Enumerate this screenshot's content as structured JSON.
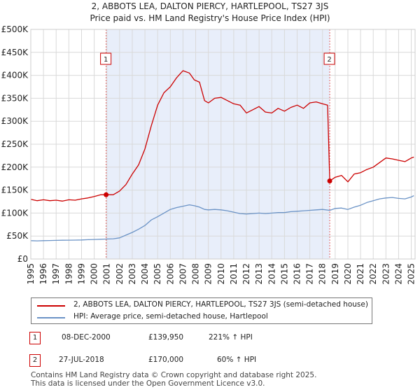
{
  "title_line1": "2, ABBOTS LEA, DALTON PIERCY, HARTLEPOOL, TS27 3JS",
  "title_line2": "Price paid vs. HM Land Registry's House Price Index (HPI)",
  "colors": {
    "property": "#cc0000",
    "hpi": "#6b93c6",
    "shade": "#e8eefa",
    "grid": "#d9d9d9",
    "marker_line": "#e06060"
  },
  "legend": {
    "property_label": "2, ABBOTS LEA, DALTON PIERCY, HARTLEPOOL, TS27 3JS (semi-detached house)",
    "hpi_label": "HPI: Average price, semi-detached house, Hartlepool"
  },
  "annotations": [
    {
      "num": "1",
      "date": "08-DEC-2000",
      "price": "£139,950",
      "hpi_change": "221% ↑ HPI"
    },
    {
      "num": "2",
      "date": "27-JUL-2018",
      "price": "£170,000",
      "hpi_change": "60% ↑ HPI"
    }
  ],
  "footer_line1": "Contains HM Land Registry data © Crown copyright and database right 2025.",
  "footer_line2": "This data is licensed under the Open Government Licence v3.0.",
  "chart_data": {
    "type": "line",
    "xlim": [
      1995,
      2025.3
    ],
    "ylim": [
      0,
      500000
    ],
    "ytick_values": [
      0,
      50000,
      100000,
      150000,
      200000,
      250000,
      300000,
      350000,
      400000,
      450000,
      500000
    ],
    "ytick_labels": [
      "£0",
      "£50K",
      "£100K",
      "£150K",
      "£200K",
      "£250K",
      "£300K",
      "£350K",
      "£400K",
      "£450K",
      "£500K"
    ],
    "xtick_labels": [
      "1995",
      "1996",
      "1997",
      "1998",
      "1999",
      "2000",
      "2001",
      "2002",
      "2003",
      "2004",
      "2005",
      "2006",
      "2007",
      "2008",
      "2009",
      "2010",
      "2011",
      "2012",
      "2013",
      "2014",
      "2015",
      "2016",
      "2017",
      "2018",
      "2019",
      "2020",
      "2021",
      "2022",
      "2023",
      "2024",
      "2025"
    ],
    "shaded_range": [
      2000.94,
      2018.57
    ],
    "sales": [
      {
        "label": "1",
        "x": 2000.94,
        "y": 139950
      },
      {
        "label": "2",
        "x": 2018.57,
        "y": 170000
      }
    ],
    "series": [
      {
        "name": "2, ABBOTS LEA, DALTON PIERCY, HARTLEPOOL, TS27 3JS (semi-detached house)",
        "x": [
          1995,
          1995.5,
          1996,
          1996.5,
          1997,
          1997.5,
          1998,
          1998.5,
          1999,
          1999.5,
          2000,
          2000.5,
          2000.94,
          2001.5,
          2002,
          2002.5,
          2003,
          2003.5,
          2004,
          2004.5,
          2005,
          2005.5,
          2006,
          2006.5,
          2007,
          2007.5,
          2007.9,
          2008.3,
          2008.7,
          2009,
          2009.5,
          2010,
          2010.5,
          2011,
          2011.5,
          2012,
          2012.5,
          2013,
          2013.5,
          2014,
          2014.5,
          2015,
          2015.5,
          2016,
          2016.5,
          2017,
          2017.5,
          2018,
          2018.4,
          2018.57,
          2019,
          2019.5,
          2020,
          2020.5,
          2021,
          2021.5,
          2022,
          2022.5,
          2023,
          2023.5,
          2024,
          2024.5,
          2025,
          2025.2
        ],
        "values": [
          130000,
          127000,
          129000,
          127000,
          128000,
          126000,
          129000,
          128000,
          131000,
          133000,
          136000,
          140000,
          139950,
          140000,
          148000,
          162000,
          185000,
          205000,
          240000,
          290000,
          335000,
          362000,
          375000,
          395000,
          410000,
          405000,
          390000,
          385000,
          345000,
          340000,
          350000,
          352000,
          345000,
          338000,
          335000,
          318000,
          325000,
          332000,
          320000,
          318000,
          328000,
          322000,
          330000,
          335000,
          328000,
          340000,
          342000,
          338000,
          335000,
          170000,
          178000,
          182000,
          168000,
          185000,
          188000,
          195000,
          200000,
          210000,
          220000,
          218000,
          215000,
          212000,
          220000,
          222000
        ]
      },
      {
        "name": "HPI: Average price, semi-detached house, Hartlepool",
        "x": [
          1995,
          1995.5,
          1996,
          1996.5,
          1997,
          1997.5,
          1998,
          1998.5,
          1999,
          1999.5,
          2000,
          2000.5,
          2000.94,
          2001.5,
          2002,
          2002.5,
          2003,
          2003.5,
          2004,
          2004.5,
          2005,
          2005.5,
          2006,
          2006.5,
          2007,
          2007.5,
          2007.9,
          2008.3,
          2008.7,
          2009,
          2009.5,
          2010,
          2010.5,
          2011,
          2011.5,
          2012,
          2012.5,
          2013,
          2013.5,
          2014,
          2014.5,
          2015,
          2015.5,
          2016,
          2016.5,
          2017,
          2017.5,
          2018,
          2018.57,
          2019,
          2019.5,
          2020,
          2020.5,
          2021,
          2021.5,
          2022,
          2022.5,
          2023,
          2023.5,
          2024,
          2024.5,
          2025,
          2025.2
        ],
        "values": [
          40000,
          39500,
          40000,
          40200,
          40500,
          40800,
          41000,
          41200,
          41500,
          42000,
          42500,
          43000,
          43500,
          44000,
          46000,
          52000,
          58000,
          65000,
          73000,
          85000,
          92000,
          100000,
          108000,
          112000,
          115000,
          118000,
          116000,
          113000,
          108000,
          107000,
          108000,
          107000,
          105000,
          102000,
          99000,
          98000,
          99000,
          100000,
          99000,
          100000,
          101000,
          101000,
          103000,
          104000,
          105000,
          106000,
          107000,
          108000,
          106000,
          110000,
          111000,
          108000,
          113000,
          117000,
          123000,
          127000,
          131000,
          133000,
          134000,
          132000,
          131000,
          135000,
          138000
        ]
      }
    ]
  }
}
